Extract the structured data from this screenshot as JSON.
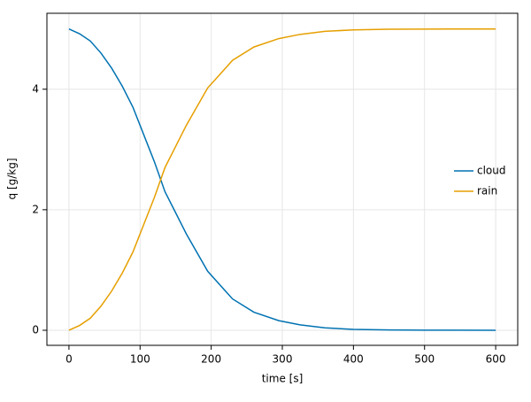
{
  "chart_data": {
    "type": "line",
    "xlabel": "time [s]",
    "ylabel": "q [g/kg]",
    "x": [
      0,
      15,
      30,
      45,
      60,
      75,
      90,
      105,
      120,
      135,
      150,
      165,
      195,
      230,
      260,
      295,
      325,
      360,
      400,
      450,
      500,
      600
    ],
    "series": [
      {
        "name": "cloud",
        "color": "#0072b2",
        "values": [
          5.0,
          4.92,
          4.8,
          4.6,
          4.35,
          4.05,
          3.7,
          3.25,
          2.8,
          2.3,
          1.95,
          1.6,
          0.98,
          0.52,
          0.3,
          0.16,
          0.09,
          0.04,
          0.015,
          0.005,
          0.002,
          0.0
        ]
      },
      {
        "name": "rain",
        "color": "#e69f00",
        "values": [
          0.0,
          0.08,
          0.2,
          0.4,
          0.65,
          0.95,
          1.3,
          1.75,
          2.2,
          2.7,
          3.05,
          3.4,
          4.02,
          4.48,
          4.7,
          4.84,
          4.91,
          4.96,
          4.985,
          4.995,
          4.998,
          5.0
        ]
      }
    ],
    "xlim": [
      -31,
      631
    ],
    "ylim": [
      -0.25,
      5.26
    ],
    "xticks": [
      0,
      100,
      200,
      300,
      400,
      500,
      600
    ],
    "yticks": [
      0,
      2,
      4
    ],
    "grid": true,
    "legend": "right"
  }
}
